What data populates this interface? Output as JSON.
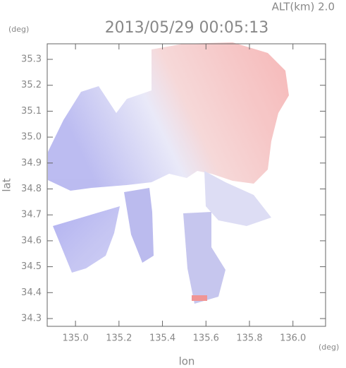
{
  "chart_data": {
    "type": "map",
    "title": "2013/05/29 00:05:13",
    "altitude_label": "ALT(km) 2.0",
    "x_label": "lon",
    "y_label": "lat",
    "x_unit": "(deg)",
    "y_unit": "(deg)",
    "xlim": [
      134.87,
      136.15
    ],
    "xticks": [
      {
        "value": 135,
        "label": "135.0"
      },
      135.2,
      135.4,
      135.6,
      135.8,
      {
        "value": 136,
        "label": "136.0"
      }
    ],
    "ylim": [
      34.27,
      35.36
    ],
    "yticks": [
      34.3,
      34.4,
      34.5,
      34.6,
      34.7,
      34.8,
      34.9,
      {
        "value": 35,
        "label": "35.0"
      },
      35.1,
      35.2,
      35.3
    ]
  }
}
